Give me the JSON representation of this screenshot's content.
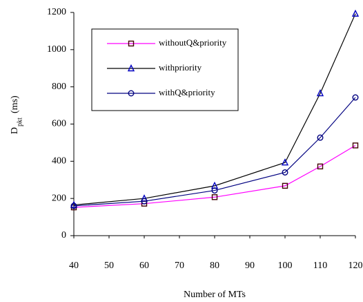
{
  "chart_data": {
    "type": "line",
    "x_label": "Number of MTs",
    "y_label": {
      "main": "D",
      "subscript": "pkt",
      "suffix": "(ms)"
    },
    "x": [
      40,
      60,
      80,
      100,
      110,
      120
    ],
    "xlim": [
      40,
      120
    ],
    "xticks": [
      40,
      50,
      60,
      70,
      80,
      90,
      100,
      110,
      120
    ],
    "ylim": [
      0,
      1200
    ],
    "yticks": [
      0,
      200,
      400,
      600,
      800,
      1000,
      1200
    ],
    "legend": "upper left",
    "series": [
      {
        "name": "withoutQ&priority",
        "color": "#ff00ff",
        "marker": "square",
        "marker_color": "#400000",
        "values": [
          152,
          172,
          207,
          268,
          372,
          485
        ]
      },
      {
        "name": "withpriority",
        "color": "#000000",
        "marker": "triangle",
        "marker_color": "#0000c0",
        "values": [
          165,
          200,
          268,
          393,
          765,
          1193
        ]
      },
      {
        "name": "withQ&priority",
        "color": "#000080",
        "marker": "circle",
        "marker_color": "#000080",
        "values": [
          160,
          185,
          243,
          340,
          527,
          743
        ]
      }
    ]
  }
}
